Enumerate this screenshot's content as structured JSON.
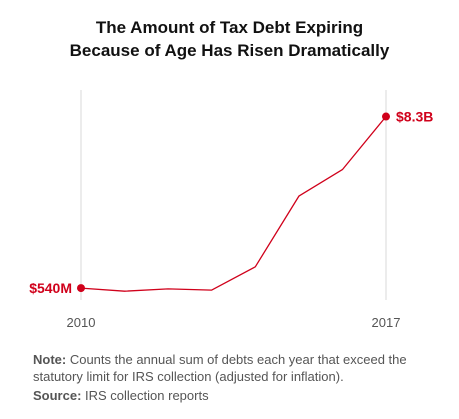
{
  "chart_data": {
    "type": "line",
    "title_lines": [
      "The Amount of Tax Debt Expiring",
      "Because of Age Has Risen Dramatically"
    ],
    "x": [
      2010,
      2011,
      2012,
      2013,
      2014,
      2015,
      2016,
      2017
    ],
    "values": [
      0.54,
      0.4,
      0.5,
      0.45,
      1.5,
      4.7,
      5.9,
      8.3
    ],
    "unit": "$B",
    "x_tick_labels": [
      "2010",
      "2017"
    ],
    "xlim": [
      2010,
      2017
    ],
    "ylim": [
      0,
      9.5
    ],
    "annotations": {
      "start_label": "$540M",
      "end_label": "$8.3B"
    },
    "grid": false,
    "series_color": "#d0011b",
    "axis_color": "#d9d9d9"
  },
  "note": {
    "label": "Note:",
    "text": " Counts the annual sum of debts each year that exceed the statutory limit for IRS collection (adjusted for inflation)."
  },
  "source": {
    "label": "Source:",
    "text": " IRS collection reports"
  }
}
